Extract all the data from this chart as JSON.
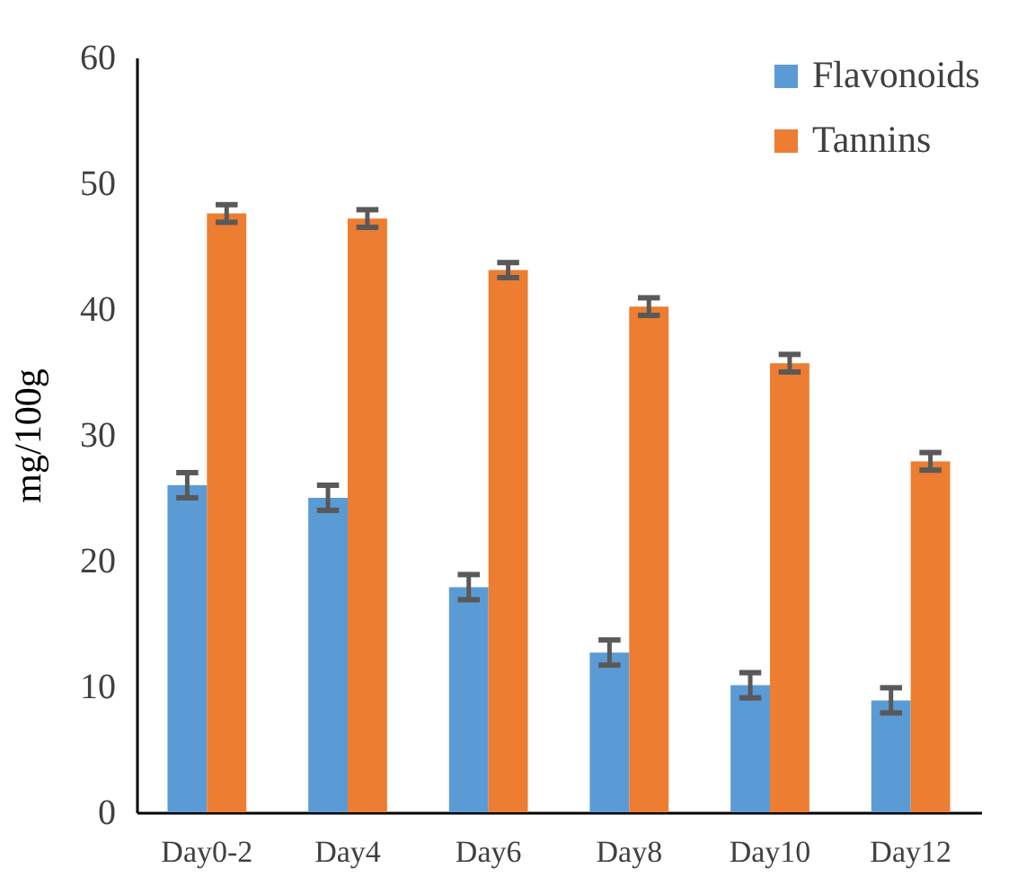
{
  "chart_data": {
    "type": "bar",
    "ylabel": "mg/100g",
    "categories": [
      "Day0-2",
      "Day4",
      "Day6",
      "Day8",
      "Day10",
      "Day12"
    ],
    "series": [
      {
        "name": "Flavonoids",
        "color": "#5b9bd5",
        "values": [
          26.0,
          25.0,
          17.9,
          12.7,
          10.1,
          8.9
        ],
        "errors": [
          1.0,
          1.0,
          1.0,
          1.0,
          1.0,
          1.0
        ]
      },
      {
        "name": "Tannins",
        "color": "#ed7d31",
        "values": [
          47.6,
          47.2,
          43.1,
          40.2,
          35.7,
          27.9
        ],
        "errors": [
          0.7,
          0.7,
          0.6,
          0.7,
          0.7,
          0.7
        ]
      }
    ],
    "ylim": [
      0,
      60
    ],
    "yticks": [
      0,
      10,
      20,
      30,
      40,
      50,
      60
    ],
    "grid": false,
    "legend": "top right"
  }
}
